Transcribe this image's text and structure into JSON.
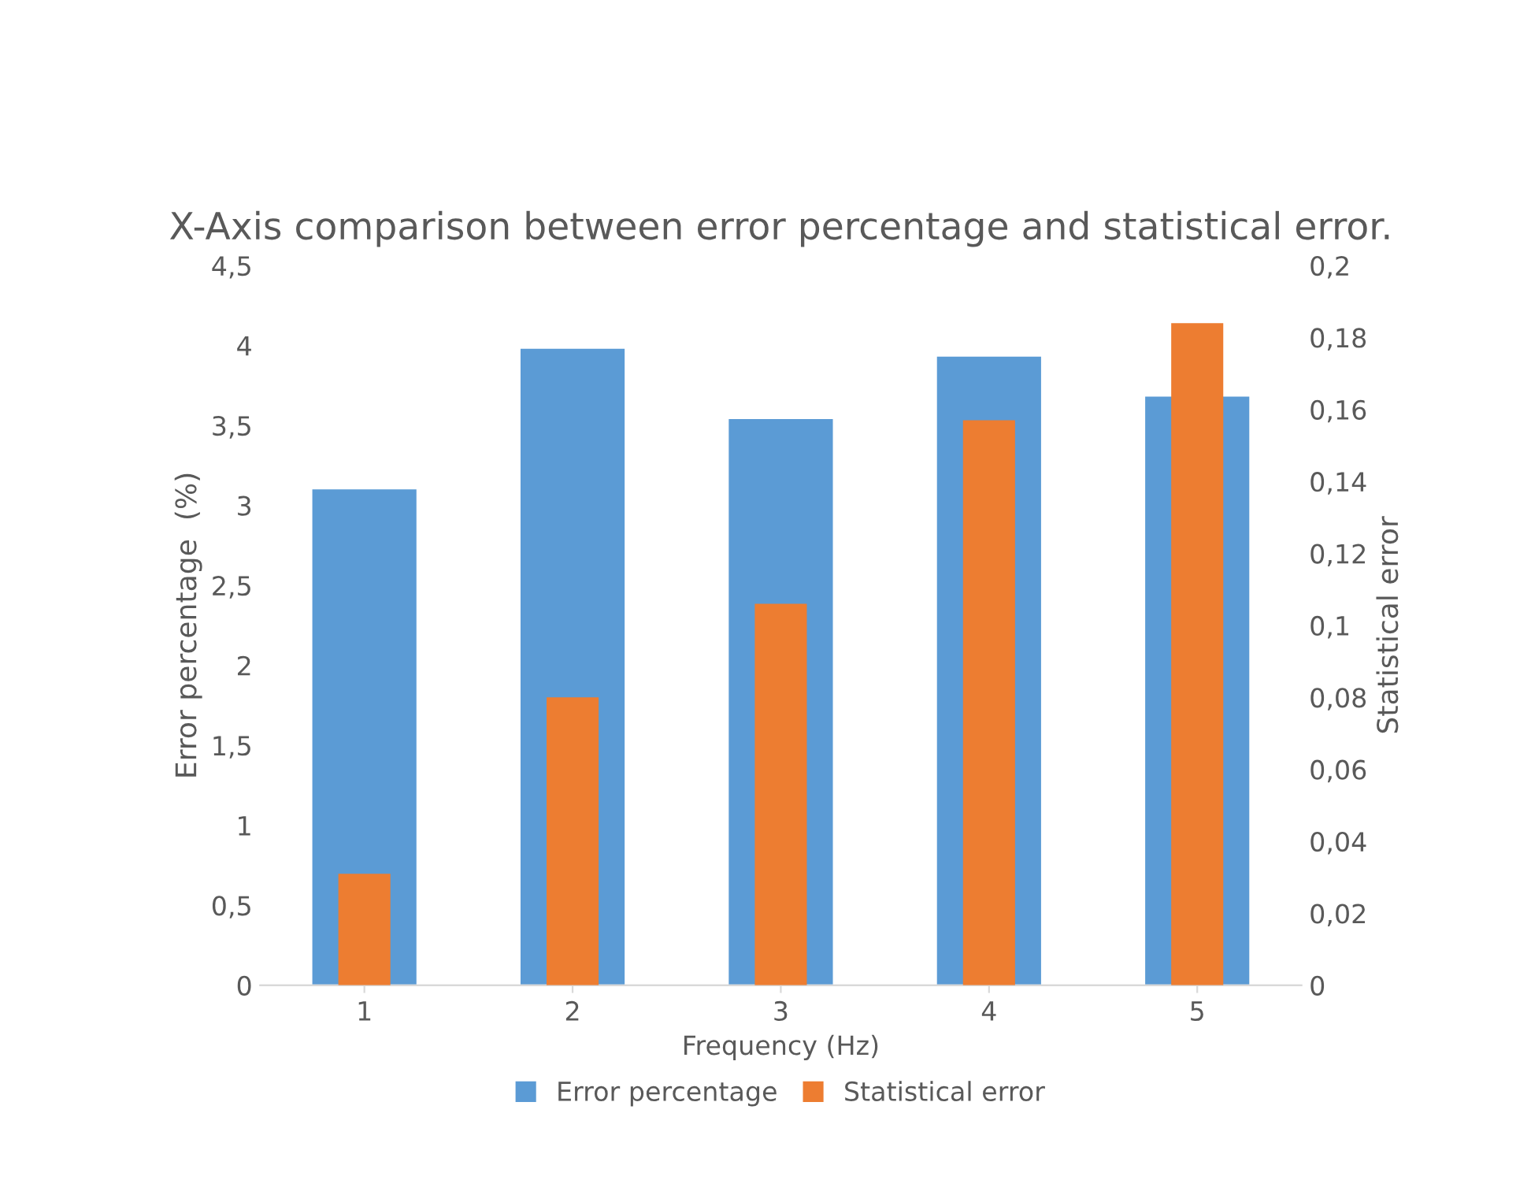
{
  "chart_data": {
    "type": "bar",
    "title": "X-Axis comparison between error percentage and statistical error.",
    "xlabel": "Frequency (Hz)",
    "ylabel": "Error percentage  (%)",
    "y2label": "Statistical error",
    "categories": [
      "1",
      "2",
      "3",
      "4",
      "5"
    ],
    "series": [
      {
        "name": "Error percentage",
        "color": "#5b9bd5",
        "values": [
          3.1,
          3.98,
          3.54,
          3.93,
          3.68
        ]
      },
      {
        "name": "Statistical error",
        "color": "#ed7d31",
        "axis": "y2",
        "values": [
          0.031,
          0.08,
          0.106,
          0.157,
          0.184
        ]
      }
    ],
    "ylim": [
      0,
      4.5
    ],
    "yticks": [
      0,
      {
        "value": 0.5,
        "label": "0,5"
      },
      1,
      {
        "value": 1.5,
        "label": "1,5"
      },
      2,
      {
        "value": 2.5,
        "label": "2,5"
      },
      3,
      {
        "value": 3.5,
        "label": "3,5"
      },
      4,
      {
        "value": 4.5,
        "label": "4,5"
      }
    ],
    "y2lim": [
      0,
      0.2
    ],
    "y2ticks": [
      0,
      {
        "value": 0.02,
        "label": "0,02"
      },
      {
        "value": 0.04,
        "label": "0,04"
      },
      {
        "value": 0.06,
        "label": "0,06"
      },
      {
        "value": 0.08,
        "label": "0,08"
      },
      {
        "value": 0.1,
        "label": "0,1"
      },
      {
        "value": 0.12,
        "label": "0,12"
      },
      {
        "value": 0.14,
        "label": "0,14"
      },
      {
        "value": 0.16,
        "label": "0,16"
      },
      {
        "value": 0.18,
        "label": "0,18"
      },
      {
        "value": 0.2,
        "label": "0,2"
      }
    ],
    "grid": false,
    "legend": "bottom"
  }
}
